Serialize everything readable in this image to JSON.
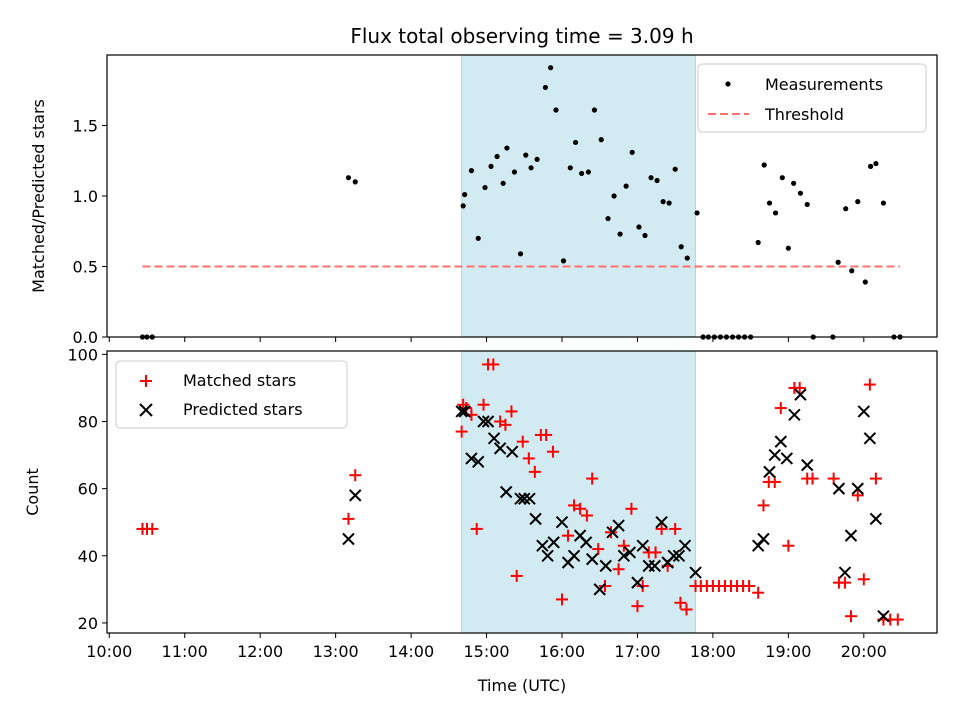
{
  "chart_data": [
    {
      "type": "scatter",
      "panel": "top",
      "title": "Flux total observing time = 3.09 h",
      "xlabel": "",
      "ylabel": "Matched/Predicted stars",
      "xlim": [
        9.97,
        20.97
      ],
      "ylim": [
        0,
        2.0
      ],
      "yticks": [
        0.0,
        0.5,
        1.0,
        1.5
      ],
      "ytick_labels": [
        "0.0",
        "0.5",
        "1.0",
        "1.5"
      ],
      "shaded_region": {
        "x_start": 14.67,
        "x_end": 17.77,
        "color": "#add8e6"
      },
      "legend": {
        "position": "top-right",
        "entries": [
          "Measurements",
          "Threshold"
        ]
      },
      "series": [
        {
          "name": "Measurements",
          "marker": "dot",
          "color": "#000000",
          "points": [
            [
              10.44,
              0.0
            ],
            [
              10.5,
              0.0
            ],
            [
              10.57,
              0.0
            ],
            [
              13.17,
              1.13
            ],
            [
              13.26,
              1.1
            ],
            [
              14.69,
              0.93
            ],
            [
              14.71,
              1.01
            ],
            [
              14.8,
              1.18
            ],
            [
              14.89,
              0.7
            ],
            [
              14.98,
              1.06
            ],
            [
              15.06,
              1.21
            ],
            [
              15.14,
              1.28
            ],
            [
              15.22,
              1.09
            ],
            [
              15.27,
              1.34
            ],
            [
              15.37,
              1.17
            ],
            [
              15.45,
              0.59
            ],
            [
              15.52,
              1.29
            ],
            [
              15.59,
              1.2
            ],
            [
              15.67,
              1.26
            ],
            [
              15.78,
              1.77
            ],
            [
              15.85,
              1.91
            ],
            [
              15.92,
              1.61
            ],
            [
              16.02,
              0.54
            ],
            [
              16.11,
              1.2
            ],
            [
              16.18,
              1.38
            ],
            [
              16.26,
              1.16
            ],
            [
              16.35,
              1.17
            ],
            [
              16.43,
              1.61
            ],
            [
              16.52,
              1.4
            ],
            [
              16.61,
              0.84
            ],
            [
              16.69,
              1.0
            ],
            [
              16.77,
              0.73
            ],
            [
              16.85,
              1.07
            ],
            [
              16.93,
              1.31
            ],
            [
              17.02,
              0.78
            ],
            [
              17.1,
              0.72
            ],
            [
              17.18,
              1.13
            ],
            [
              17.26,
              1.11
            ],
            [
              17.34,
              0.96
            ],
            [
              17.42,
              0.95
            ],
            [
              17.5,
              1.19
            ],
            [
              17.58,
              0.64
            ],
            [
              17.66,
              0.56
            ],
            [
              17.79,
              0.88
            ],
            [
              17.87,
              0.0
            ],
            [
              17.94,
              0.0
            ],
            [
              18.02,
              0.0
            ],
            [
              18.1,
              0.0
            ],
            [
              18.18,
              0.0
            ],
            [
              18.26,
              0.0
            ],
            [
              18.34,
              0.0
            ],
            [
              18.42,
              0.0
            ],
            [
              18.5,
              0.0
            ],
            [
              18.6,
              0.67
            ],
            [
              18.68,
              1.22
            ],
            [
              18.75,
              0.95
            ],
            [
              18.83,
              0.88
            ],
            [
              18.92,
              1.13
            ],
            [
              19.0,
              0.63
            ],
            [
              19.07,
              1.09
            ],
            [
              19.16,
              1.02
            ],
            [
              19.25,
              0.94
            ],
            [
              19.33,
              0.0
            ],
            [
              19.59,
              0.0
            ],
            [
              19.66,
              0.53
            ],
            [
              19.76,
              0.91
            ],
            [
              19.84,
              0.47
            ],
            [
              19.92,
              0.96
            ],
            [
              20.02,
              0.39
            ],
            [
              20.09,
              1.21
            ],
            [
              20.16,
              1.23
            ],
            [
              20.26,
              0.95
            ],
            [
              20.4,
              0.0
            ],
            [
              20.48,
              0.0
            ]
          ]
        },
        {
          "name": "Threshold",
          "line": "dashed",
          "color": "#ff7070",
          "x": [
            10.44,
            20.48
          ],
          "y": [
            0.5,
            0.5
          ]
        }
      ]
    },
    {
      "type": "scatter",
      "panel": "bottom",
      "xlabel": "Time (UTC)",
      "ylabel": "Count",
      "xlim": [
        9.97,
        20.97
      ],
      "ylim": [
        17,
        101
      ],
      "xticks": [
        10,
        11,
        12,
        13,
        14,
        15,
        16,
        17,
        18,
        19,
        20
      ],
      "xtick_labels": [
        "10:00",
        "11:00",
        "12:00",
        "13:00",
        "14:00",
        "15:00",
        "16:00",
        "17:00",
        "18:00",
        "19:00",
        "20:00"
      ],
      "yticks": [
        20,
        40,
        60,
        80,
        100
      ],
      "ytick_labels": [
        "20",
        "40",
        "60",
        "80",
        "100"
      ],
      "shaded_region": {
        "x_start": 14.67,
        "x_end": 17.77,
        "color": "#add8e6"
      },
      "legend": {
        "position": "top-left",
        "entries": [
          "Matched stars",
          "Predicted stars"
        ]
      },
      "series": [
        {
          "name": "Matched stars",
          "marker": "plus",
          "color": "#ff0000",
          "points": [
            [
              10.44,
              48
            ],
            [
              10.5,
              48
            ],
            [
              10.57,
              48
            ],
            [
              13.17,
              51
            ],
            [
              13.26,
              64
            ],
            [
              14.67,
              77
            ],
            [
              14.69,
              85
            ],
            [
              14.73,
              84
            ],
            [
              14.8,
              82
            ],
            [
              14.87,
              48
            ],
            [
              14.96,
              85
            ],
            [
              15.02,
              97
            ],
            [
              15.09,
              97
            ],
            [
              15.18,
              80
            ],
            [
              15.25,
              79
            ],
            [
              15.33,
              83
            ],
            [
              15.4,
              34
            ],
            [
              15.48,
              74
            ],
            [
              15.56,
              69
            ],
            [
              15.64,
              65
            ],
            [
              15.72,
              76
            ],
            [
              15.79,
              76
            ],
            [
              15.88,
              71
            ],
            [
              16.0,
              27
            ],
            [
              16.08,
              46
            ],
            [
              16.16,
              55
            ],
            [
              16.24,
              54
            ],
            [
              16.33,
              52
            ],
            [
              16.4,
              63
            ],
            [
              16.48,
              42
            ],
            [
              16.57,
              31
            ],
            [
              16.65,
              47
            ],
            [
              16.75,
              36
            ],
            [
              16.82,
              43
            ],
            [
              16.92,
              54
            ],
            [
              17.0,
              25
            ],
            [
              17.07,
              31
            ],
            [
              17.15,
              41
            ],
            [
              17.24,
              41
            ],
            [
              17.32,
              48
            ],
            [
              17.4,
              37
            ],
            [
              17.5,
              48
            ],
            [
              17.57,
              26
            ],
            [
              17.65,
              24
            ],
            [
              17.77,
              31
            ],
            [
              17.84,
              31
            ],
            [
              17.92,
              31
            ],
            [
              18.0,
              31
            ],
            [
              18.08,
              31
            ],
            [
              18.16,
              31
            ],
            [
              18.24,
              31
            ],
            [
              18.32,
              31
            ],
            [
              18.4,
              31
            ],
            [
              18.48,
              31
            ],
            [
              18.6,
              29
            ],
            [
              18.67,
              55
            ],
            [
              18.74,
              62
            ],
            [
              18.82,
              62
            ],
            [
              18.9,
              84
            ],
            [
              19.0,
              43
            ],
            [
              19.08,
              90
            ],
            [
              19.15,
              90
            ],
            [
              19.25,
              63
            ],
            [
              19.32,
              63
            ],
            [
              19.6,
              63
            ],
            [
              19.67,
              32
            ],
            [
              19.75,
              32
            ],
            [
              19.83,
              22
            ],
            [
              19.92,
              58
            ],
            [
              20.0,
              33
            ],
            [
              20.08,
              91
            ],
            [
              20.16,
              63
            ],
            [
              20.26,
              21
            ],
            [
              20.35,
              21
            ],
            [
              20.45,
              21
            ]
          ]
        },
        {
          "name": "Predicted stars",
          "marker": "x",
          "color": "#000000",
          "points": [
            [
              13.17,
              45
            ],
            [
              13.26,
              58
            ],
            [
              14.67,
              83
            ],
            [
              14.71,
              83
            ],
            [
              14.8,
              69
            ],
            [
              14.89,
              68
            ],
            [
              14.96,
              80
            ],
            [
              15.02,
              80
            ],
            [
              15.1,
              75
            ],
            [
              15.18,
              72
            ],
            [
              15.26,
              59
            ],
            [
              15.34,
              71
            ],
            [
              15.45,
              57
            ],
            [
              15.5,
              57
            ],
            [
              15.57,
              57
            ],
            [
              15.65,
              51
            ],
            [
              15.74,
              43
            ],
            [
              15.81,
              40
            ],
            [
              15.89,
              44
            ],
            [
              16.0,
              50
            ],
            [
              16.08,
              38
            ],
            [
              16.16,
              40
            ],
            [
              16.24,
              46
            ],
            [
              16.32,
              44
            ],
            [
              16.4,
              39
            ],
            [
              16.5,
              30
            ],
            [
              16.58,
              37
            ],
            [
              16.67,
              47
            ],
            [
              16.75,
              49
            ],
            [
              16.82,
              40
            ],
            [
              16.9,
              41
            ],
            [
              17.0,
              32
            ],
            [
              17.07,
              43
            ],
            [
              17.15,
              37
            ],
            [
              17.23,
              37
            ],
            [
              17.32,
              50
            ],
            [
              17.4,
              38
            ],
            [
              17.48,
              40
            ],
            [
              17.55,
              40
            ],
            [
              17.63,
              43
            ],
            [
              17.77,
              35
            ],
            [
              18.6,
              43
            ],
            [
              18.67,
              45
            ],
            [
              18.75,
              65
            ],
            [
              18.82,
              70
            ],
            [
              18.9,
              74
            ],
            [
              18.98,
              69
            ],
            [
              19.08,
              82
            ],
            [
              19.16,
              88
            ],
            [
              19.25,
              67
            ],
            [
              19.67,
              60
            ],
            [
              19.75,
              35
            ],
            [
              19.83,
              46
            ],
            [
              19.92,
              60
            ],
            [
              20.0,
              83
            ],
            [
              20.08,
              75
            ],
            [
              20.16,
              51
            ],
            [
              20.26,
              22
            ]
          ]
        }
      ]
    }
  ]
}
